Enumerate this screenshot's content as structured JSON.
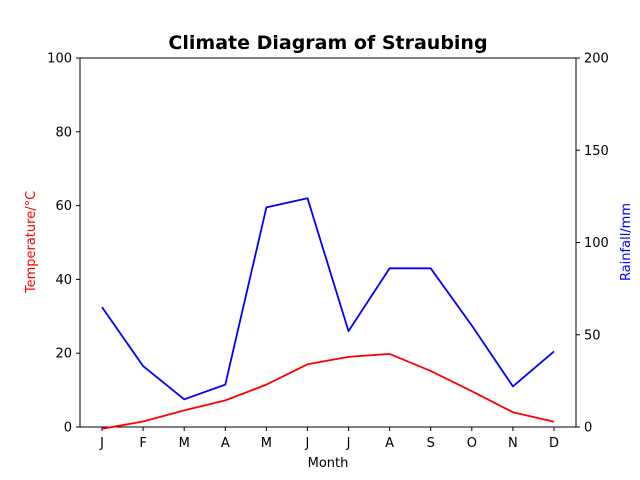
{
  "chart_data": {
    "type": "line",
    "title": "Climate Diagram of Straubing",
    "xlabel": "Month",
    "categories": [
      "J",
      "F",
      "M",
      "A",
      "M",
      "J",
      "J",
      "A",
      "S",
      "O",
      "N",
      "D"
    ],
    "y_left": {
      "label": "Temperature/°C",
      "ylim": [
        0,
        100
      ],
      "ticks": [
        0,
        20,
        40,
        60,
        80,
        100
      ],
      "color": "#ff0000"
    },
    "y_right": {
      "label": "Rainfall/mm",
      "ylim": [
        0,
        200
      ],
      "ticks": [
        0,
        50,
        100,
        150,
        200
      ],
      "color": "#0000ff"
    },
    "grid": false,
    "series": [
      {
        "axis": "left",
        "color": "#ff0000",
        "values": [
          -0.5,
          1.5,
          4.5,
          7.2,
          11.5,
          17.0,
          19.0,
          19.8,
          15.2,
          9.7,
          4.0,
          1.4
        ]
      },
      {
        "axis": "right",
        "color": "#0000ff",
        "values": [
          65,
          33,
          15,
          23,
          119,
          124,
          52,
          86,
          86,
          55,
          22,
          41
        ]
      }
    ]
  }
}
